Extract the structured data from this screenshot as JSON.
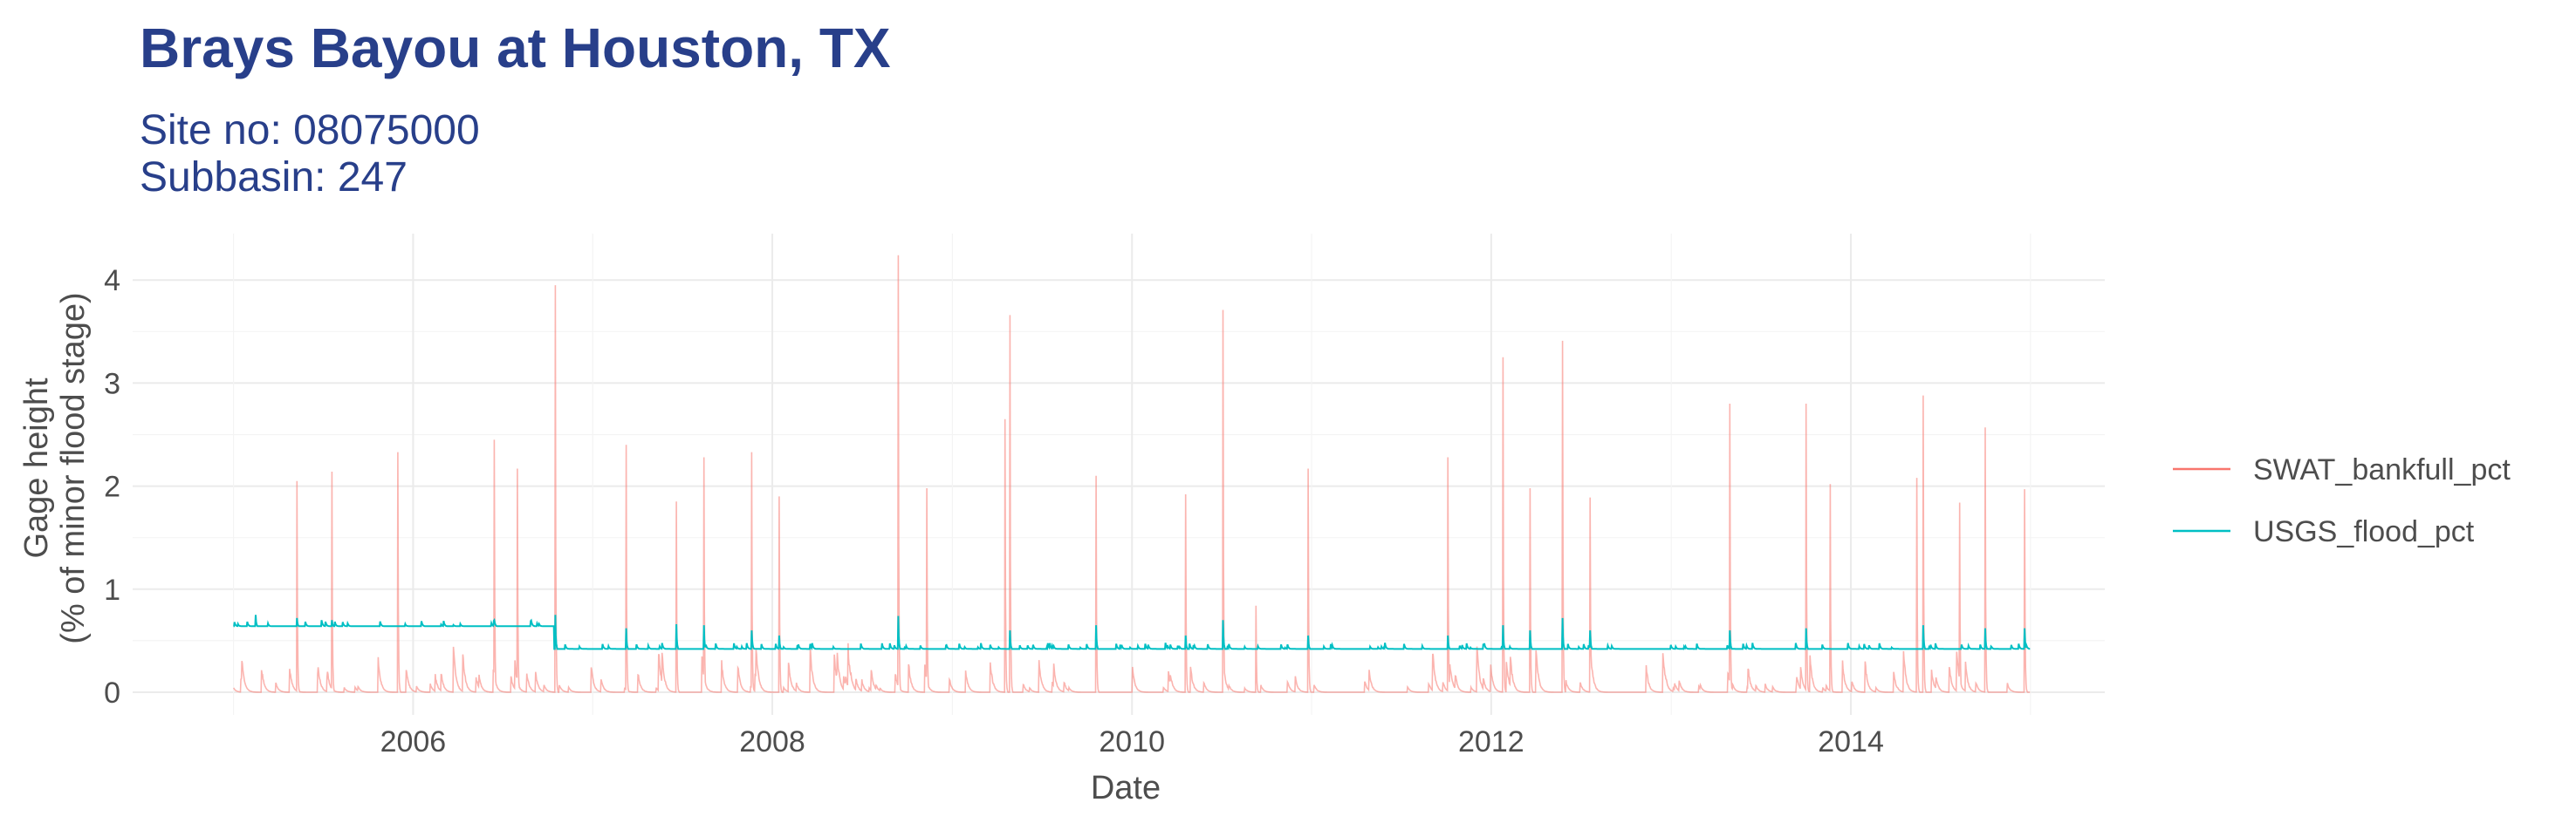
{
  "chart_data": {
    "type": "line",
    "title": "Brays Bayou at Houston, TX",
    "subtitle_line1": "Site no: 08075000",
    "subtitle_line2": "Subbasin: 247",
    "xlabel": "Date",
    "ylabel_line1": "Gage height",
    "ylabel_line2": "(% of minor flood stage)",
    "x_ticks": [
      "2006",
      "2008",
      "2010",
      "2012",
      "2014"
    ],
    "y_ticks": [
      "0",
      "1",
      "2",
      "3",
      "4"
    ],
    "xlim": [
      "2004-06-10",
      "2015-06-01"
    ],
    "ylim": [
      -0.22,
      4.45
    ],
    "grid": true,
    "legend_position": "right",
    "series": [
      {
        "name": "SWAT_bankfull_pct",
        "color": "#f8766d",
        "baseline": 0.0,
        "peaks": [
          [
            "2005-05-10",
            2.05
          ],
          [
            "2005-07-20",
            2.14
          ],
          [
            "2005-12-01",
            2.33
          ],
          [
            "2006-06-15",
            2.45
          ],
          [
            "2006-08-01",
            2.17
          ],
          [
            "2006-10-17",
            3.95
          ],
          [
            "2007-03-10",
            2.4
          ],
          [
            "2007-06-20",
            1.85
          ],
          [
            "2007-08-15",
            2.28
          ],
          [
            "2007-11-20",
            2.33
          ],
          [
            "2008-01-15",
            1.9
          ],
          [
            "2008-09-13",
            4.24
          ],
          [
            "2008-11-10",
            1.98
          ],
          [
            "2009-04-18",
            2.65
          ],
          [
            "2009-04-28",
            3.66
          ],
          [
            "2009-10-20",
            2.1
          ],
          [
            "2010-04-20",
            1.92
          ],
          [
            "2010-07-05",
            3.71
          ],
          [
            "2010-09-10",
            0.84
          ],
          [
            "2010-12-25",
            2.17
          ],
          [
            "2011-10-05",
            2.28
          ],
          [
            "2012-01-25",
            3.25
          ],
          [
            "2012-03-20",
            1.98
          ],
          [
            "2012-05-25",
            3.41
          ],
          [
            "2012-07-20",
            1.89
          ],
          [
            "2013-04-30",
            2.8
          ],
          [
            "2013-10-02",
            2.8
          ],
          [
            "2013-11-20",
            2.02
          ],
          [
            "2014-05-15",
            2.08
          ],
          [
            "2014-05-28",
            2.88
          ],
          [
            "2014-08-10",
            1.84
          ],
          [
            "2014-10-01",
            2.57
          ],
          [
            "2014-12-20",
            1.97
          ]
        ]
      },
      {
        "name": "USGS_flood_pct",
        "color": "#00bfc4",
        "baseline_segments": [
          [
            "2005-01-01",
            "2006-10-14",
            0.64
          ],
          [
            "2006-10-15",
            "2014-12-31",
            0.42
          ]
        ],
        "peaks": [
          [
            "2005-02-15",
            0.75
          ],
          [
            "2005-05-10",
            0.72
          ],
          [
            "2005-07-20",
            0.7
          ],
          [
            "2006-06-15",
            0.7
          ],
          [
            "2006-10-17",
            0.75
          ],
          [
            "2007-03-10",
            0.62
          ],
          [
            "2007-06-20",
            0.66
          ],
          [
            "2007-08-15",
            0.65
          ],
          [
            "2007-11-20",
            0.6
          ],
          [
            "2008-01-15",
            0.55
          ],
          [
            "2008-09-13",
            0.74
          ],
          [
            "2009-04-28",
            0.6
          ],
          [
            "2009-10-20",
            0.65
          ],
          [
            "2010-04-20",
            0.55
          ],
          [
            "2010-07-05",
            0.7
          ],
          [
            "2010-12-25",
            0.55
          ],
          [
            "2011-10-05",
            0.55
          ],
          [
            "2012-01-25",
            0.65
          ],
          [
            "2012-03-20",
            0.6
          ],
          [
            "2012-05-25",
            0.72
          ],
          [
            "2012-07-20",
            0.6
          ],
          [
            "2013-04-30",
            0.6
          ],
          [
            "2013-10-02",
            0.62
          ],
          [
            "2014-05-28",
            0.65
          ],
          [
            "2014-10-01",
            0.62
          ],
          [
            "2014-12-20",
            0.62
          ]
        ]
      }
    ]
  }
}
